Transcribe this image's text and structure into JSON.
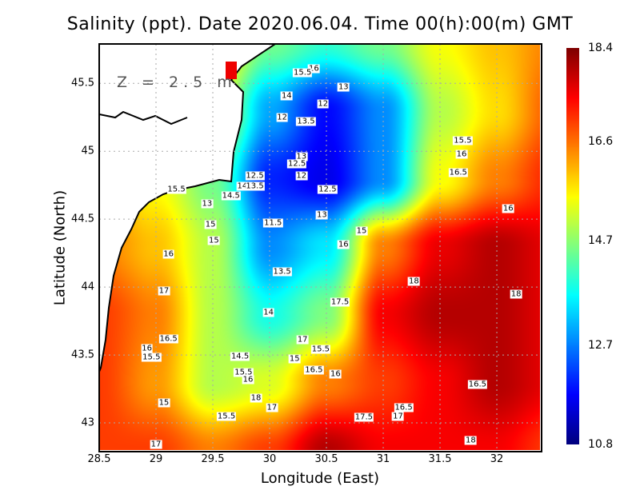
{
  "chart_data": {
    "type": "heatmap",
    "title": "Salinity (ppt). Date 2020.06.04. Time 00(h):00(m) GMT",
    "xlabel": "Longitude (East)",
    "ylabel": "Latitude (North)",
    "annotation": "Z = 2.5 m",
    "xlim": [
      28.5,
      32.38
    ],
    "ylim": [
      42.8,
      45.79
    ],
    "xticks": [
      "28.5",
      "29",
      "29.5",
      "30",
      "30.5",
      "31",
      "31.5",
      "32"
    ],
    "xtick_values": [
      28.5,
      29,
      29.5,
      30,
      30.5,
      31,
      31.5,
      32
    ],
    "yticks": [
      "45.5",
      "45",
      "44.5",
      "44",
      "43.5",
      "43"
    ],
    "ytick_values": [
      45.5,
      45,
      44.5,
      44,
      43.5,
      43
    ],
    "grid": true,
    "colorbar": {
      "min": 10.8,
      "max": 18.4,
      "ticks": [
        "18.4",
        "16.6",
        "14.7",
        "12.7",
        "10.8"
      ],
      "tick_values": [
        18.4,
        16.6,
        14.7,
        12.7,
        10.8
      ],
      "colormap": "jet"
    },
    "grid_lon": [
      28.5,
      29,
      29.5,
      30,
      30.5,
      31,
      31.5,
      32,
      32.5
    ],
    "grid_lat": [
      45.8,
      45.3,
      44.8,
      44.3,
      43.8,
      43.3,
      42.8
    ],
    "values": [
      [
        16,
        16,
        16,
        14.5,
        14,
        14.5,
        15.5,
        16,
        16.5
      ],
      [
        16,
        16,
        15.5,
        13,
        11.8,
        12.8,
        15,
        15.8,
        16.8
      ],
      [
        16,
        15.5,
        14.5,
        12,
        11.6,
        12.8,
        15.5,
        16.5,
        17.2
      ],
      [
        16.5,
        16,
        15,
        12.8,
        13.5,
        16.5,
        17.6,
        18,
        17.6
      ],
      [
        17,
        16.5,
        15,
        13.8,
        14.6,
        17.5,
        18,
        18,
        17.6
      ],
      [
        17,
        16.3,
        15,
        15.3,
        16.5,
        17,
        17.5,
        18,
        17.6
      ],
      [
        17,
        17,
        16.5,
        17,
        18,
        17.5,
        17.5,
        17.5,
        17
      ]
    ],
    "contour_labels": [
      {
        "text": "15.5",
        "lon": 29.18,
        "lat": 44.72
      },
      {
        "text": "16",
        "lon": 30.39,
        "lat": 45.61
      },
      {
        "text": "15.5",
        "lon": 30.29,
        "lat": 45.58
      },
      {
        "text": "13",
        "lon": 30.65,
        "lat": 45.47
      },
      {
        "text": "14",
        "lon": 30.15,
        "lat": 45.41
      },
      {
        "text": "12",
        "lon": 30.47,
        "lat": 45.35
      },
      {
        "text": "12",
        "lon": 30.11,
        "lat": 45.25
      },
      {
        "text": "13.5",
        "lon": 30.32,
        "lat": 45.22
      },
      {
        "text": "13",
        "lon": 30.28,
        "lat": 44.96
      },
      {
        "text": "12.5",
        "lon": 30.24,
        "lat": 44.91
      },
      {
        "text": "12",
        "lon": 30.28,
        "lat": 44.82
      },
      {
        "text": "12.5",
        "lon": 29.87,
        "lat": 44.82
      },
      {
        "text": "14",
        "lon": 29.76,
        "lat": 44.74
      },
      {
        "text": "13.5",
        "lon": 29.87,
        "lat": 44.74
      },
      {
        "text": "14.5",
        "lon": 29.66,
        "lat": 44.67
      },
      {
        "text": "12.5",
        "lon": 30.51,
        "lat": 44.72
      },
      {
        "text": "13",
        "lon": 29.45,
        "lat": 44.61
      },
      {
        "text": "15",
        "lon": 29.48,
        "lat": 44.46
      },
      {
        "text": "11.5",
        "lon": 30.03,
        "lat": 44.47
      },
      {
        "text": "13",
        "lon": 30.46,
        "lat": 44.53
      },
      {
        "text": "15",
        "lon": 29.51,
        "lat": 44.34
      },
      {
        "text": "15",
        "lon": 30.81,
        "lat": 44.41
      },
      {
        "text": "16",
        "lon": 30.65,
        "lat": 44.31
      },
      {
        "text": "16",
        "lon": 29.11,
        "lat": 44.24
      },
      {
        "text": "13.5",
        "lon": 30.11,
        "lat": 44.11
      },
      {
        "text": "17",
        "lon": 29.07,
        "lat": 43.97
      },
      {
        "text": "17.5",
        "lon": 30.62,
        "lat": 43.89
      },
      {
        "text": "18",
        "lon": 31.27,
        "lat": 44.04
      },
      {
        "text": "14",
        "lon": 29.99,
        "lat": 43.81
      },
      {
        "text": "18",
        "lon": 32.17,
        "lat": 43.95
      },
      {
        "text": "16.5",
        "lon": 29.11,
        "lat": 43.62
      },
      {
        "text": "16",
        "lon": 28.92,
        "lat": 43.55
      },
      {
        "text": "15.5",
        "lon": 28.96,
        "lat": 43.48
      },
      {
        "text": "17",
        "lon": 30.29,
        "lat": 43.61
      },
      {
        "text": "15.5",
        "lon": 30.45,
        "lat": 43.54
      },
      {
        "text": "14.5",
        "lon": 29.74,
        "lat": 43.49
      },
      {
        "text": "15",
        "lon": 30.22,
        "lat": 43.47
      },
      {
        "text": "16.5",
        "lon": 30.39,
        "lat": 43.39
      },
      {
        "text": "16",
        "lon": 30.58,
        "lat": 43.36
      },
      {
        "text": "15.5",
        "lon": 29.77,
        "lat": 43.37
      },
      {
        "text": "16",
        "lon": 29.81,
        "lat": 43.32
      },
      {
        "text": "18",
        "lon": 29.88,
        "lat": 43.18
      },
      {
        "text": "15",
        "lon": 29.07,
        "lat": 43.15
      },
      {
        "text": "17",
        "lon": 30.02,
        "lat": 43.11
      },
      {
        "text": "15.5",
        "lon": 29.62,
        "lat": 43.05
      },
      {
        "text": "17.5",
        "lon": 30.83,
        "lat": 43.04
      },
      {
        "text": "16.5",
        "lon": 31.18,
        "lat": 43.11
      },
      {
        "text": "17",
        "lon": 31.13,
        "lat": 43.05
      },
      {
        "text": "16.5",
        "lon": 31.83,
        "lat": 43.28
      },
      {
        "text": "15.5",
        "lon": 31.7,
        "lat": 45.08
      },
      {
        "text": "16",
        "lon": 31.69,
        "lat": 44.98
      },
      {
        "text": "16.5",
        "lon": 31.66,
        "lat": 44.84
      },
      {
        "text": "16",
        "lon": 32.1,
        "lat": 44.58
      },
      {
        "text": "17",
        "lon": 29.0,
        "lat": 42.84
      },
      {
        "text": "18",
        "lon": 31.77,
        "lat": 42.87
      }
    ]
  }
}
